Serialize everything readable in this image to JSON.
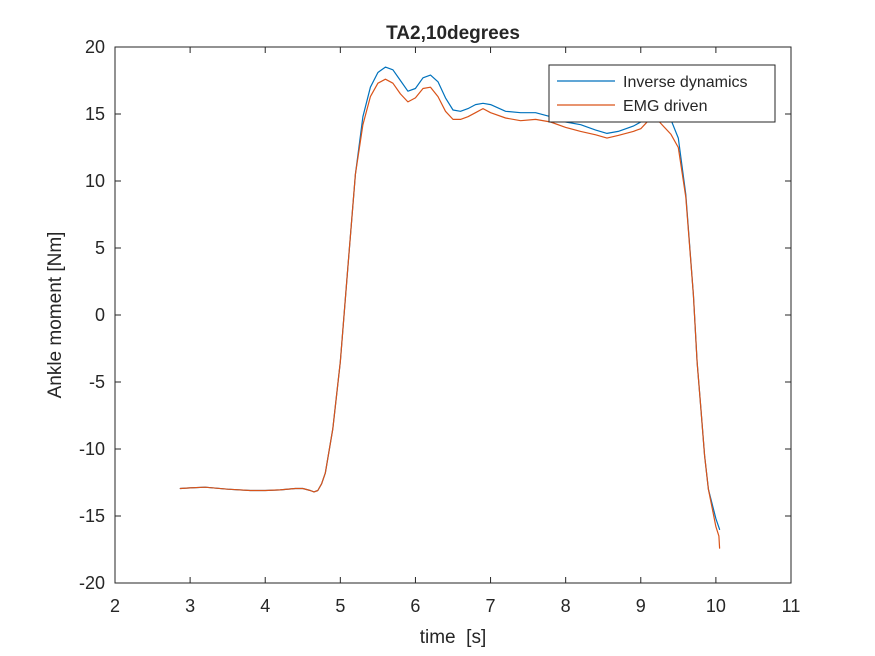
{
  "chart_data": {
    "type": "line",
    "title": "TA2,10degrees",
    "xlabel": "time  [s]",
    "ylabel": "Ankle moment [Nm]",
    "xlim": [
      2,
      11
    ],
    "ylim": [
      -20,
      20
    ],
    "xticks": [
      2,
      3,
      4,
      5,
      6,
      7,
      8,
      9,
      10,
      11
    ],
    "yticks": [
      -20,
      -15,
      -10,
      -5,
      0,
      5,
      10,
      15,
      20
    ],
    "grid": false,
    "legend_position": "top-right",
    "series": [
      {
        "name": "Inverse dynamics",
        "color": "#0072BD",
        "x": [
          2.87,
          3.0,
          3.2,
          3.5,
          3.8,
          4.0,
          4.2,
          4.4,
          4.5,
          4.6,
          4.65,
          4.7,
          4.75,
          4.8,
          4.9,
          5.0,
          5.1,
          5.2,
          5.3,
          5.4,
          5.5,
          5.6,
          5.7,
          5.8,
          5.9,
          6.0,
          6.1,
          6.2,
          6.3,
          6.4,
          6.5,
          6.6,
          6.7,
          6.8,
          6.9,
          7.0,
          7.2,
          7.4,
          7.6,
          7.8,
          8.0,
          8.2,
          8.4,
          8.55,
          8.7,
          8.9,
          9.0,
          9.1,
          9.2,
          9.3,
          9.4,
          9.5,
          9.6,
          9.7,
          9.75,
          9.8,
          9.85,
          9.9,
          10.0,
          10.05
        ],
        "y": [
          -12.95,
          -12.9,
          -12.85,
          -13.0,
          -13.1,
          -13.1,
          -13.05,
          -12.95,
          -12.95,
          -13.1,
          -13.2,
          -13.1,
          -12.6,
          -11.8,
          -8.5,
          -3.5,
          3.5,
          10.5,
          14.8,
          17.0,
          18.1,
          18.5,
          18.3,
          17.5,
          16.7,
          16.9,
          17.7,
          17.9,
          17.4,
          16.2,
          15.3,
          15.2,
          15.4,
          15.7,
          15.8,
          15.7,
          15.2,
          15.1,
          15.1,
          14.8,
          14.4,
          14.2,
          13.8,
          13.55,
          13.7,
          14.1,
          14.4,
          14.7,
          15.0,
          15.2,
          14.6,
          13.2,
          9.0,
          1.5,
          -3.5,
          -7.0,
          -10.5,
          -13.0,
          -15.2,
          -16.0
        ]
      },
      {
        "name": "EMG driven",
        "color": "#D95319",
        "x": [
          2.87,
          3.0,
          3.2,
          3.5,
          3.8,
          4.0,
          4.2,
          4.4,
          4.5,
          4.6,
          4.65,
          4.7,
          4.75,
          4.8,
          4.9,
          5.0,
          5.1,
          5.2,
          5.3,
          5.4,
          5.5,
          5.6,
          5.7,
          5.8,
          5.9,
          6.0,
          6.1,
          6.2,
          6.3,
          6.4,
          6.5,
          6.6,
          6.7,
          6.8,
          6.9,
          7.0,
          7.2,
          7.4,
          7.6,
          7.8,
          8.0,
          8.2,
          8.4,
          8.55,
          8.7,
          8.9,
          9.0,
          9.1,
          9.2,
          9.3,
          9.4,
          9.5,
          9.6,
          9.7,
          9.75,
          9.8,
          9.85,
          9.9,
          10.0,
          10.04,
          10.05
        ],
        "y": [
          -12.95,
          -12.9,
          -12.85,
          -13.0,
          -13.1,
          -13.1,
          -13.05,
          -12.95,
          -12.95,
          -13.1,
          -13.2,
          -13.1,
          -12.6,
          -11.8,
          -8.5,
          -3.5,
          3.5,
          10.5,
          14.2,
          16.3,
          17.3,
          17.6,
          17.3,
          16.5,
          15.9,
          16.2,
          16.9,
          17.0,
          16.3,
          15.2,
          14.6,
          14.6,
          14.8,
          15.1,
          15.4,
          15.1,
          14.7,
          14.5,
          14.6,
          14.4,
          14.0,
          13.7,
          13.45,
          13.2,
          13.4,
          13.7,
          13.9,
          14.5,
          14.7,
          14.1,
          13.5,
          12.5,
          8.8,
          1.5,
          -3.5,
          -7.0,
          -10.5,
          -13.0,
          -15.8,
          -16.5,
          -17.4
        ]
      }
    ]
  }
}
